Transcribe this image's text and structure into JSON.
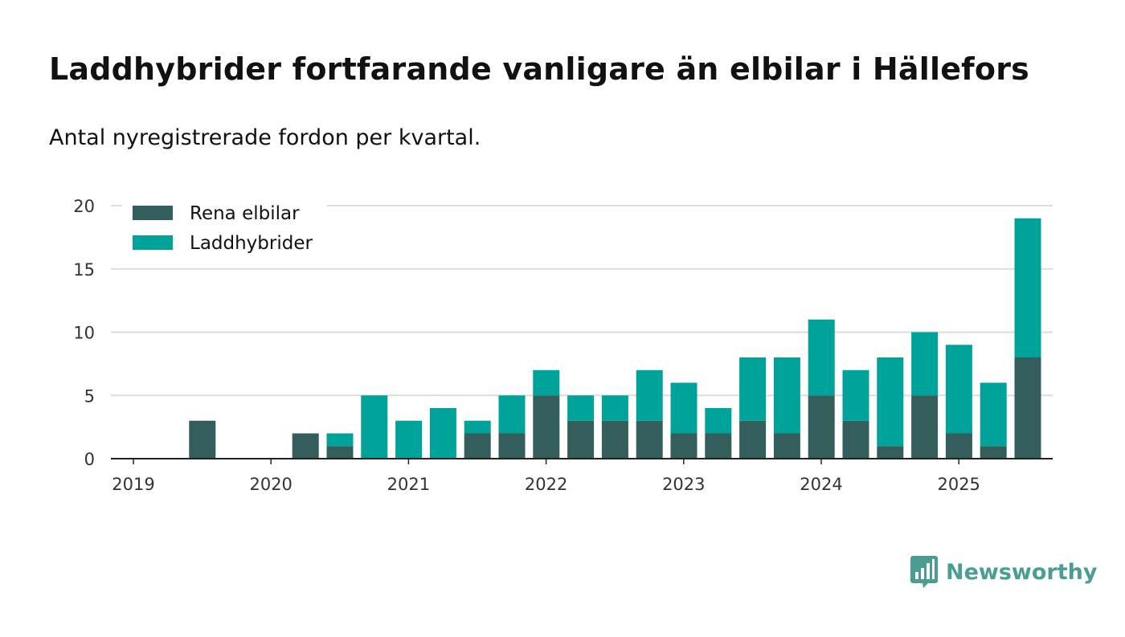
{
  "header": {
    "title": "Laddhybrider fortfarande vanligare än elbilar i Hällefors",
    "subtitle": "Antal nyregistrerade fordon per kvartal."
  },
  "branding": {
    "name": "Newsworthy",
    "icon": "newsworthy-chart-bubble-icon",
    "color": "#4a9d93"
  },
  "chart_data": {
    "type": "bar",
    "stacked": true,
    "categories": [
      "2019 Q1",
      "2019 Q2",
      "2019 Q3",
      "2019 Q4",
      "2020 Q1",
      "2020 Q2",
      "2020 Q3",
      "2020 Q4",
      "2021 Q1",
      "2021 Q2",
      "2021 Q3",
      "2021 Q4",
      "2022 Q1",
      "2022 Q2",
      "2022 Q3",
      "2022 Q4",
      "2023 Q1",
      "2023 Q2",
      "2023 Q3",
      "2023 Q4",
      "2024 Q1",
      "2024 Q2",
      "2024 Q3",
      "2024 Q4",
      "2025 Q1",
      "2025 Q2"
    ],
    "series": [
      {
        "name": "Rena elbilar",
        "color": "#335e5b",
        "values": [
          0,
          3,
          0,
          0,
          2,
          1,
          0,
          0,
          0,
          2,
          2,
          5,
          3,
          3,
          3,
          2,
          2,
          3,
          2,
          5,
          3,
          1,
          5,
          2,
          1,
          8
        ]
      },
      {
        "name": "Laddhybrider",
        "color": "#00a39a",
        "values": [
          0,
          0,
          0,
          0,
          0,
          1,
          5,
          3,
          4,
          1,
          3,
          2,
          2,
          2,
          4,
          4,
          2,
          5,
          6,
          6,
          4,
          7,
          5,
          7,
          5,
          11
        ]
      }
    ],
    "x_ticks": [
      "2019",
      "2020",
      "2021",
      "2022",
      "2023",
      "2024",
      "2025"
    ],
    "y_ticks": [
      "0",
      "5",
      "10",
      "15",
      "20"
    ],
    "ylim": [
      0,
      20
    ],
    "grid": true,
    "legend_position": "top-left",
    "xlabel": "",
    "ylabel": ""
  }
}
